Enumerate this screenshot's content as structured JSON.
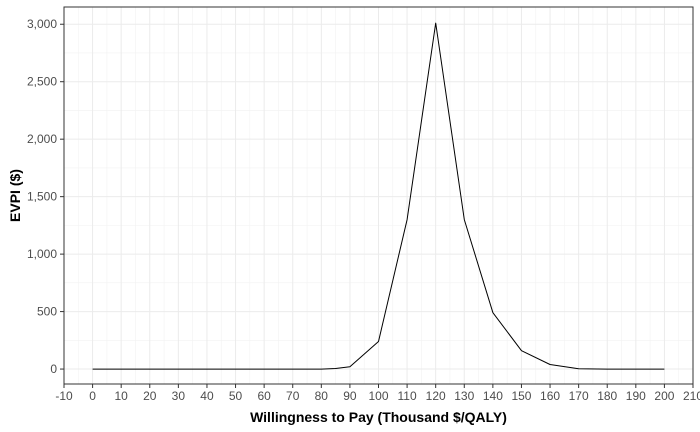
{
  "chart_data": {
    "type": "line",
    "title": "",
    "xlabel": "Willingness to Pay (Thousand $/QALY)",
    "ylabel": "EVPI ($)",
    "xlim": [
      -10,
      210
    ],
    "ylim": [
      -130,
      3150
    ],
    "x_ticks": [
      -10,
      0,
      10,
      20,
      30,
      40,
      50,
      60,
      70,
      80,
      90,
      100,
      110,
      120,
      130,
      140,
      150,
      160,
      170,
      180,
      190,
      200,
      210
    ],
    "x_tick_labels": [
      "-10",
      "0",
      "10",
      "20",
      "30",
      "40",
      "50",
      "60",
      "70",
      "80",
      "90",
      "100",
      "110",
      "120",
      "130",
      "140",
      "150",
      "160",
      "170",
      "180",
      "190",
      "200",
      "210"
    ],
    "y_ticks": [
      0,
      500,
      1000,
      1500,
      2000,
      2500,
      3000
    ],
    "y_tick_labels": [
      "0",
      "500",
      "1,000",
      "1,500",
      "2,000",
      "2,500",
      "3,000"
    ],
    "grid": true,
    "legend": "none",
    "series": [
      {
        "color": "#000000",
        "x": [
          0,
          10,
          20,
          30,
          40,
          50,
          60,
          70,
          80,
          85,
          90,
          100,
          110,
          120,
          130,
          140,
          150,
          160,
          170,
          180,
          190,
          200
        ],
        "y": [
          0,
          0,
          0,
          0,
          0,
          0,
          0,
          0,
          0,
          5,
          20,
          240,
          1300,
          3010,
          1300,
          490,
          160,
          40,
          3,
          0,
          0,
          0
        ]
      }
    ]
  }
}
